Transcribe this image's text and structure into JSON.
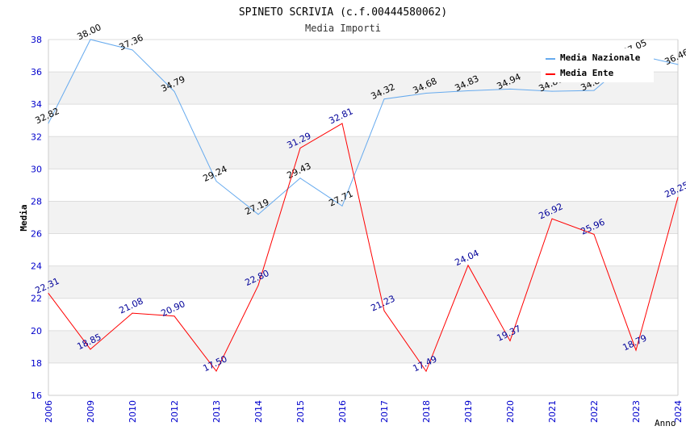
{
  "chart_data": {
    "type": "line",
    "title": "SPINETO SCRIVIA (c.f.00444580062)",
    "subtitle": "Media Importi",
    "xlabel": "Anno",
    "ylabel": "Media",
    "ylim": [
      16,
      38
    ],
    "yticks": [
      "16",
      "18",
      "20",
      "22",
      "24",
      "26",
      "28",
      "30",
      "32",
      "34",
      "36",
      "38"
    ],
    "categories": [
      "2006",
      "2009",
      "2010",
      "2012",
      "2013",
      "2014",
      "2015",
      "2016",
      "2017",
      "2018",
      "2019",
      "2020",
      "2021",
      "2022",
      "2023",
      "2024"
    ],
    "grid": true,
    "legend_position": "top-right",
    "series": [
      {
        "name": "Media Nazionale",
        "color": "#66aaee",
        "label_color": "#000000",
        "values": [
          32.82,
          38.0,
          37.36,
          34.79,
          29.24,
          27.19,
          29.43,
          27.71,
          34.32,
          34.68,
          34.83,
          34.94,
          34.8,
          34.85,
          37.05,
          36.46
        ],
        "labels": [
          "32.82",
          "38.00",
          "37.36",
          "34.79",
          "29.24",
          "27.19",
          "29.43",
          "27.71",
          "34.32",
          "34.68",
          "34.83",
          "34.94",
          "34.80",
          "34.85",
          "37.05",
          "36.46"
        ]
      },
      {
        "name": "Media Ente",
        "color": "#ff0000",
        "label_color": "#000099",
        "values": [
          22.31,
          18.85,
          21.08,
          20.9,
          17.5,
          22.8,
          31.29,
          32.81,
          21.23,
          17.49,
          24.04,
          19.37,
          26.92,
          25.96,
          18.79,
          28.25
        ],
        "labels": [
          "22.31",
          "18.85",
          "21.08",
          "20.90",
          "17.50",
          "22.80",
          "31.29",
          "32.81",
          "21.23",
          "17.49",
          "24.04",
          "19.37",
          "26.92",
          "25.96",
          "18.79",
          "28.25"
        ]
      }
    ]
  }
}
